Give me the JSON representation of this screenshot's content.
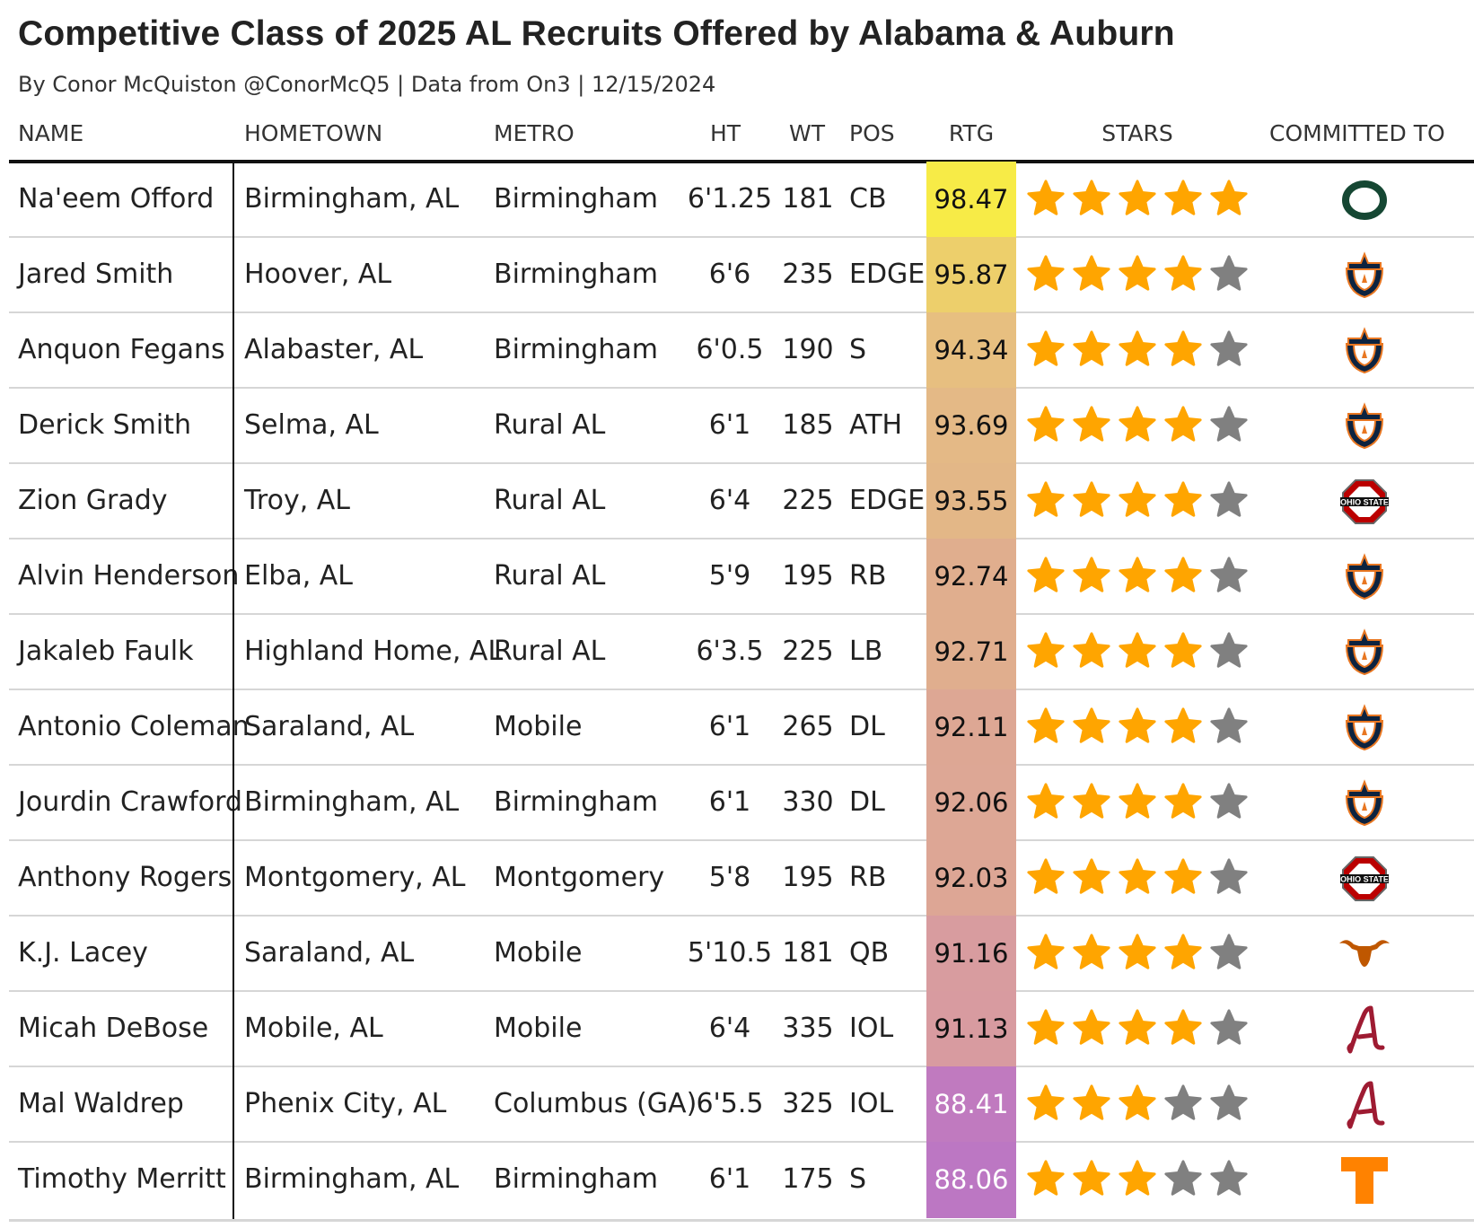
{
  "title": "Competitive Class of 2025 AL Recruits Offered by Alabama & Auburn",
  "subtitle": "By Conor McQuiston @ConorMcQ5 | Data from On3 | 12/15/2024",
  "headers": {
    "name": "NAME",
    "hometown": "HOMETOWN",
    "metro": "METRO",
    "ht": "HT",
    "wt": "WT",
    "pos": "POS",
    "rtg": "RTG",
    "stars": "STARS",
    "committed": "COMMITTED TO"
  },
  "colors": {
    "star_filled": "#FFA500",
    "star_empty": "#808080",
    "header_rule": "#111111",
    "row_divider": "#d6d6d6"
  },
  "rows": [
    {
      "name": "Na'eem Offord",
      "hometown": "Birmingham, AL",
      "metro": "Birmingham",
      "ht": "6'1.25",
      "wt": "181",
      "pos": "CB",
      "rtg": "98.47",
      "rtg_color": "#F7EB47",
      "rtg_text_color": "#111111",
      "stars": 5,
      "committed": "oregon-logo"
    },
    {
      "name": "Jared Smith",
      "hometown": "Hoover, AL",
      "metro": "Birmingham",
      "ht": "6'6",
      "wt": "235",
      "pos": "EDGE",
      "rtg": "95.87",
      "rtg_color": "#EDCF6B",
      "rtg_text_color": "#111111",
      "stars": 4,
      "committed": "auburn-logo"
    },
    {
      "name": "Anquon Fegans",
      "hometown": "Alabaster, AL",
      "metro": "Birmingham",
      "ht": "6'0.5",
      "wt": "190",
      "pos": "S",
      "rtg": "94.34",
      "rtg_color": "#E7BF80",
      "rtg_text_color": "#111111",
      "stars": 4,
      "committed": "auburn-logo"
    },
    {
      "name": "Derick Smith",
      "hometown": "Selma, AL",
      "metro": "Rural AL",
      "ht": "6'1",
      "wt": "185",
      "pos": "ATH",
      "rtg": "93.69",
      "rtg_color": "#E4B986",
      "rtg_text_color": "#111111",
      "stars": 4,
      "committed": "auburn-logo"
    },
    {
      "name": "Zion Grady",
      "hometown": "Troy, AL",
      "metro": "Rural AL",
      "ht": "6'4",
      "wt": "225",
      "pos": "EDGE",
      "rtg": "93.55",
      "rtg_color": "#E3B787",
      "rtg_text_color": "#111111",
      "stars": 4,
      "committed": "ohio-state-logo"
    },
    {
      "name": "Alvin Henderson",
      "hometown": "Elba, AL",
      "metro": "Rural AL",
      "ht": "5'9",
      "wt": "195",
      "pos": "RB",
      "rtg": "92.74",
      "rtg_color": "#E0AE8E",
      "rtg_text_color": "#111111",
      "stars": 4,
      "committed": "auburn-logo"
    },
    {
      "name": "Jakaleb Faulk",
      "hometown": "Highland Home, AL",
      "metro": "Rural AL",
      "ht": "6'3.5",
      "wt": "225",
      "pos": "LB",
      "rtg": "92.71",
      "rtg_color": "#E0AE8E",
      "rtg_text_color": "#111111",
      "stars": 4,
      "committed": "auburn-logo"
    },
    {
      "name": "Antonio Coleman",
      "hometown": "Saraland, AL",
      "metro": "Mobile",
      "ht": "6'1",
      "wt": "265",
      "pos": "DL",
      "rtg": "92.11",
      "rtg_color": "#DDA794",
      "rtg_text_color": "#111111",
      "stars": 4,
      "committed": "auburn-logo"
    },
    {
      "name": "Jourdin Crawford",
      "hometown": "Birmingham, AL",
      "metro": "Birmingham",
      "ht": "6'1",
      "wt": "330",
      "pos": "DL",
      "rtg": "92.06",
      "rtg_color": "#DDA795",
      "rtg_text_color": "#111111",
      "stars": 4,
      "committed": "auburn-logo"
    },
    {
      "name": "Anthony Rogers",
      "hometown": "Montgomery, AL",
      "metro": "Montgomery",
      "ht": "5'8",
      "wt": "195",
      "pos": "RB",
      "rtg": "92.03",
      "rtg_color": "#DDA695",
      "rtg_text_color": "#111111",
      "stars": 4,
      "committed": "ohio-state-logo"
    },
    {
      "name": "K.J. Lacey",
      "hometown": "Saraland, AL",
      "metro": "Mobile",
      "ht": "5'10.5",
      "wt": "181",
      "pos": "QB",
      "rtg": "91.16",
      "rtg_color": "#D89C9F",
      "rtg_text_color": "#111111",
      "stars": 4,
      "committed": "texas-logo"
    },
    {
      "name": "Micah DeBose",
      "hometown": "Mobile, AL",
      "metro": "Mobile",
      "ht": "6'4",
      "wt": "335",
      "pos": "IOL",
      "rtg": "91.13",
      "rtg_color": "#D89BA0",
      "rtg_text_color": "#111111",
      "stars": 4,
      "committed": "alabama-logo"
    },
    {
      "name": "Mal Waldrep",
      "hometown": "Phenix City, AL",
      "metro": "Columbus (GA)",
      "ht": "6'5.5",
      "wt": "325",
      "pos": "IOL",
      "rtg": "88.41",
      "rtg_color": "#C07ABF",
      "rtg_text_color": "#ffffff",
      "stars": 3,
      "committed": "alabama-logo"
    },
    {
      "name": "Timothy Merritt",
      "hometown": "Birmingham, AL",
      "metro": "Birmingham",
      "ht": "6'1",
      "wt": "175",
      "pos": "S",
      "rtg": "88.06",
      "rtg_color": "#BC77C3",
      "rtg_text_color": "#ffffff",
      "stars": 3,
      "committed": "tennessee-logo"
    }
  ]
}
